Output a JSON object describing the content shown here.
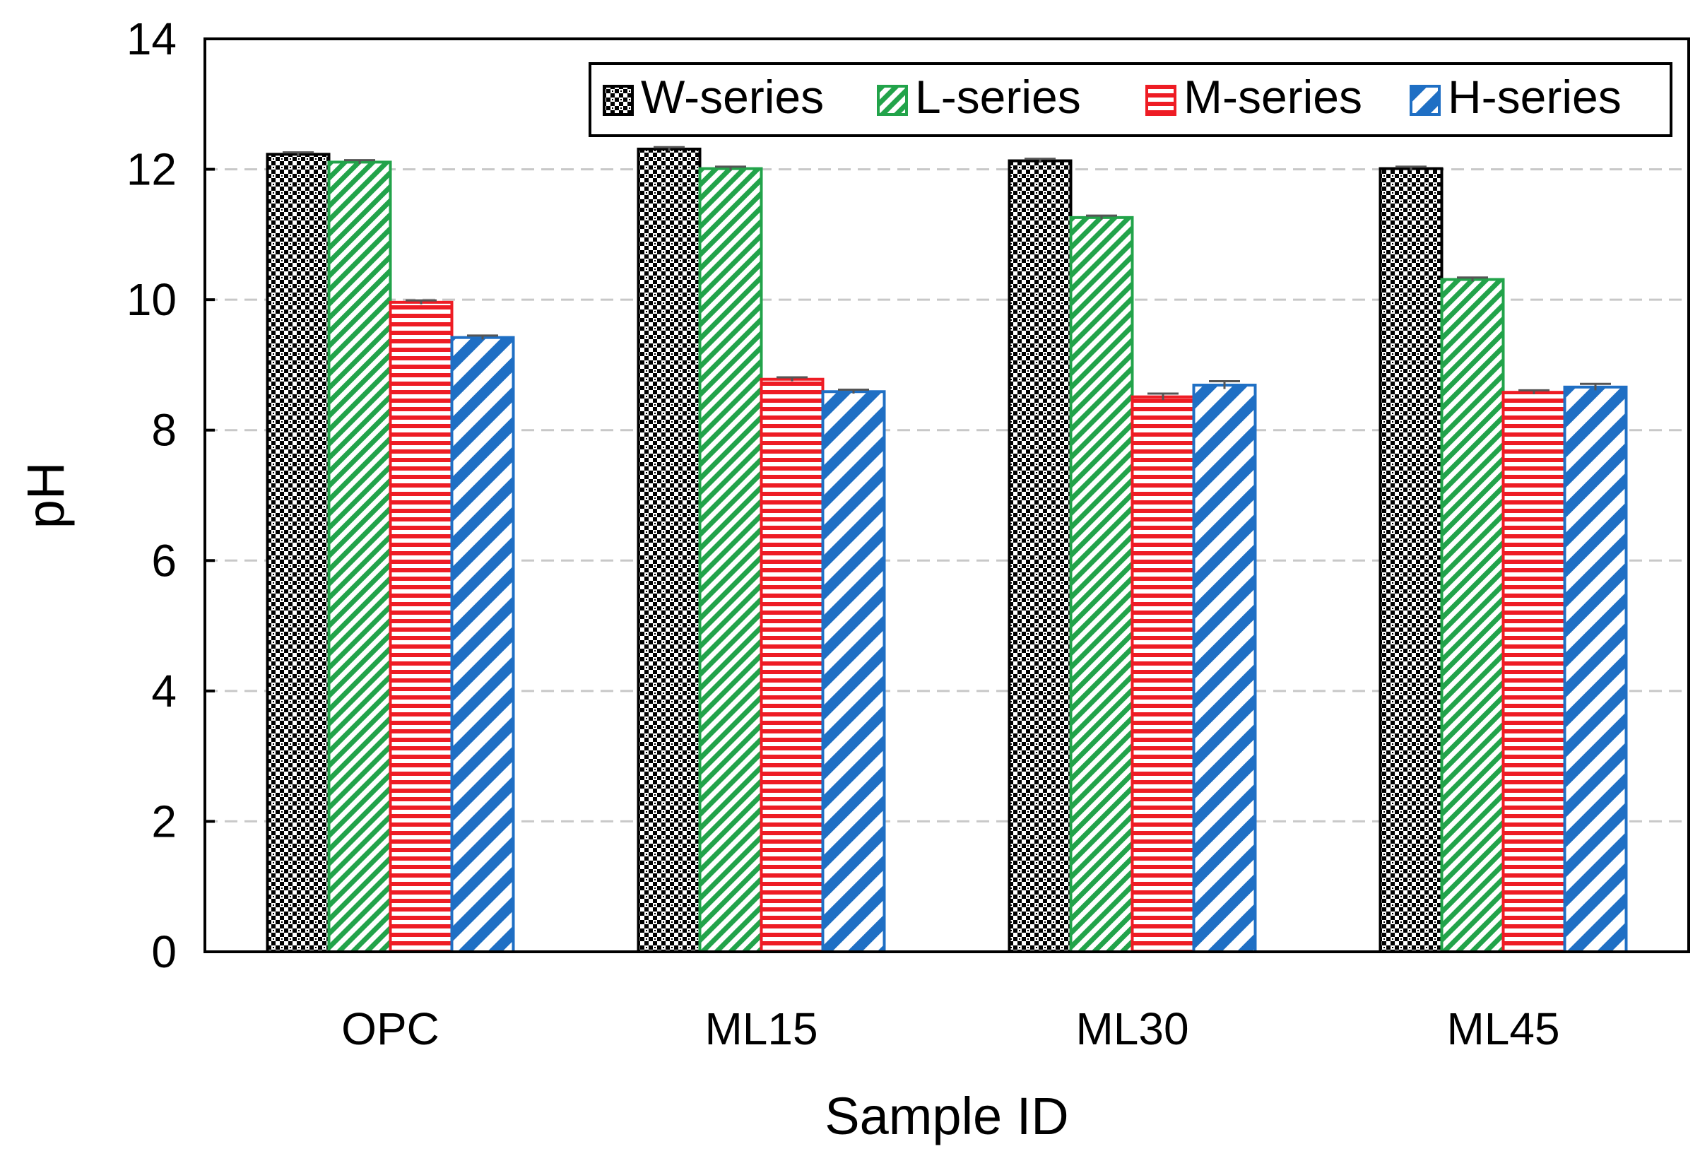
{
  "chart_data": {
    "type": "bar",
    "title": "",
    "xlabel": "Sample ID",
    "ylabel": "pH",
    "ylim": [
      0,
      14
    ],
    "yticks": [
      0,
      2,
      4,
      6,
      8,
      10,
      12,
      14
    ],
    "grid": "horizontal dashed",
    "legend_position": "top-right",
    "categories": [
      "OPC",
      "ML15",
      "ML30",
      "ML45"
    ],
    "series": [
      {
        "name": "W-series",
        "color": "#000000",
        "pattern": "checker",
        "values": [
          12.23,
          12.31,
          12.13,
          12.01
        ],
        "errors": [
          0.03,
          0.03,
          0.03,
          0.03
        ]
      },
      {
        "name": "L-series",
        "color": "#22a34a",
        "pattern": "diagonal",
        "values": [
          12.11,
          12.01,
          11.26,
          10.31
        ],
        "errors": [
          0.03,
          0.03,
          0.03,
          0.03
        ]
      },
      {
        "name": "M-series",
        "color": "#ee1c24",
        "pattern": "horizontal",
        "values": [
          9.96,
          8.78,
          8.51,
          8.58
        ],
        "errors": [
          0.03,
          0.03,
          0.05,
          0.03
        ]
      },
      {
        "name": "H-series",
        "color": "#1f6fc4",
        "pattern": "wide-diagonal",
        "values": [
          9.42,
          8.59,
          8.69,
          8.66
        ],
        "errors": [
          0.03,
          0.03,
          0.06,
          0.05
        ]
      }
    ]
  }
}
